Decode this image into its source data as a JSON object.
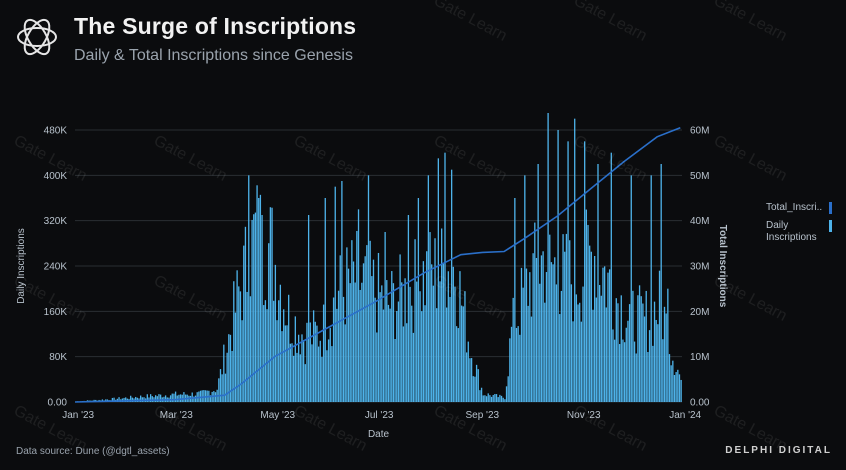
{
  "header": {
    "title": "The Surge of Inscriptions",
    "subtitle": "Daily & Total Inscriptions since Genesis"
  },
  "footer": {
    "source": "Data source: Dune (@dgtl_assets)",
    "brand": "DELPHI DIGITAL"
  },
  "watermark_text": "Gate Learn",
  "colors": {
    "background": "#0b0c0e",
    "bars": "#4eb3ea",
    "line": "#2a6fc9",
    "grid": "#2a2e33",
    "text": "#b8c2cc"
  },
  "chart_data": {
    "type": "bar",
    "title": "The Surge of Inscriptions",
    "subtitle": "Daily & Total Inscriptions since Genesis",
    "xlabel": "Date",
    "ylabel_left": "Daily Inscriptions",
    "ylabel_right": "Total Inscriptions",
    "x_ticks": [
      "Jan '23",
      "Mar '23",
      "May '23",
      "Jul '23",
      "Sep '23",
      "Nov '23",
      "Jan '24"
    ],
    "y_left_ticks": [
      "0.00",
      "80K",
      "160K",
      "240K",
      "320K",
      "400K",
      "480K"
    ],
    "y_left_lim": [
      0,
      480000
    ],
    "y_right_ticks": [
      "0.00",
      "10M",
      "20M",
      "30M",
      "40M",
      "50M",
      "60M"
    ],
    "y_right_lim": [
      0,
      60000000
    ],
    "legend": [
      "Total_Inscri..",
      "Daily Inscriptions"
    ],
    "daily_profile": [
      {
        "day": 0,
        "value": 1000
      },
      {
        "day": 20,
        "value": 5000
      },
      {
        "day": 40,
        "value": 10000
      },
      {
        "day": 60,
        "value": 14000
      },
      {
        "day": 75,
        "value": 15000
      },
      {
        "day": 85,
        "value": 25000
      },
      {
        "day": 90,
        "value": 90000
      },
      {
        "day": 98,
        "value": 200000
      },
      {
        "day": 108,
        "value": 310000
      },
      {
        "day": 118,
        "value": 280000
      },
      {
        "day": 128,
        "value": 160000
      },
      {
        "day": 138,
        "value": 120000
      },
      {
        "day": 148,
        "value": 130000
      },
      {
        "day": 158,
        "value": 200000
      },
      {
        "day": 168,
        "value": 230000
      },
      {
        "day": 178,
        "value": 210000
      },
      {
        "day": 188,
        "value": 180000
      },
      {
        "day": 198,
        "value": 200000
      },
      {
        "day": 208,
        "value": 230000
      },
      {
        "day": 218,
        "value": 240000
      },
      {
        "day": 228,
        "value": 250000
      },
      {
        "day": 238,
        "value": 90000
      },
      {
        "day": 245,
        "value": 15000
      },
      {
        "day": 258,
        "value": 8000
      },
      {
        "day": 262,
        "value": 130000
      },
      {
        "day": 272,
        "value": 220000
      },
      {
        "day": 282,
        "value": 270000
      },
      {
        "day": 292,
        "value": 230000
      },
      {
        "day": 302,
        "value": 230000
      },
      {
        "day": 312,
        "value": 280000
      },
      {
        "day": 322,
        "value": 210000
      },
      {
        "day": 332,
        "value": 160000
      },
      {
        "day": 342,
        "value": 150000
      },
      {
        "day": 352,
        "value": 180000
      },
      {
        "day": 358,
        "value": 100000
      },
      {
        "day": 364,
        "value": 40000
      }
    ],
    "daily_spikes": [
      {
        "day": 104,
        "value": 400000
      },
      {
        "day": 110,
        "value": 360000
      },
      {
        "day": 112,
        "value": 330000
      },
      {
        "day": 140,
        "value": 330000
      },
      {
        "day": 150,
        "value": 360000
      },
      {
        "day": 156,
        "value": 380000
      },
      {
        "day": 160,
        "value": 390000
      },
      {
        "day": 170,
        "value": 340000
      },
      {
        "day": 176,
        "value": 400000
      },
      {
        "day": 186,
        "value": 300000
      },
      {
        "day": 200,
        "value": 330000
      },
      {
        "day": 206,
        "value": 360000
      },
      {
        "day": 212,
        "value": 400000
      },
      {
        "day": 218,
        "value": 430000
      },
      {
        "day": 222,
        "value": 440000
      },
      {
        "day": 226,
        "value": 410000
      },
      {
        "day": 264,
        "value": 360000
      },
      {
        "day": 270,
        "value": 400000
      },
      {
        "day": 278,
        "value": 420000
      },
      {
        "day": 284,
        "value": 510000
      },
      {
        "day": 290,
        "value": 480000
      },
      {
        "day": 296,
        "value": 460000
      },
      {
        "day": 300,
        "value": 500000
      },
      {
        "day": 306,
        "value": 460000
      },
      {
        "day": 314,
        "value": 420000
      },
      {
        "day": 322,
        "value": 440000
      },
      {
        "day": 334,
        "value": 400000
      },
      {
        "day": 346,
        "value": 400000
      },
      {
        "day": 352,
        "value": 420000
      },
      {
        "day": 356,
        "value": 200000
      }
    ],
    "total_series": {
      "name": "Total_Inscriptions",
      "points": [
        {
          "day": 0,
          "value": 0
        },
        {
          "day": 60,
          "value": 500000
        },
        {
          "day": 90,
          "value": 1500000
        },
        {
          "day": 100,
          "value": 4000000
        },
        {
          "day": 120,
          "value": 10000000
        },
        {
          "day": 150,
          "value": 16000000
        },
        {
          "day": 180,
          "value": 22000000
        },
        {
          "day": 210,
          "value": 28500000
        },
        {
          "day": 232,
          "value": 32500000
        },
        {
          "day": 245,
          "value": 33000000
        },
        {
          "day": 258,
          "value": 33200000
        },
        {
          "day": 270,
          "value": 36000000
        },
        {
          "day": 290,
          "value": 41000000
        },
        {
          "day": 310,
          "value": 47000000
        },
        {
          "day": 330,
          "value": 53000000
        },
        {
          "day": 350,
          "value": 58500000
        },
        {
          "day": 364,
          "value": 60500000
        }
      ]
    }
  }
}
